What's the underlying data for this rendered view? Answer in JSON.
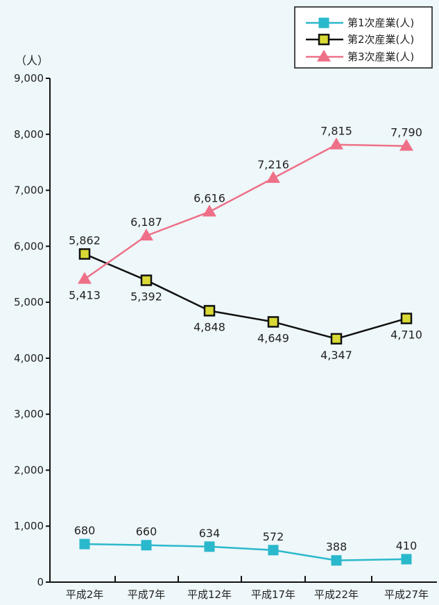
{
  "chart_data": {
    "type": "line",
    "ylabel": "（人）",
    "ylim": [
      0,
      9000
    ],
    "y_ticks": [
      0,
      1000,
      2000,
      3000,
      4000,
      5000,
      6000,
      7000,
      8000,
      9000
    ],
    "y_tick_labels": [
      "0",
      "1,000",
      "2,000",
      "3,000",
      "4,000",
      "5,000",
      "6,000",
      "7,000",
      "8,000",
      "9,000"
    ],
    "categories": [
      "平成2年",
      "平成7年",
      "平成12年",
      "平成17年",
      "平成22年",
      "平成27年"
    ],
    "legend_position": "top-right",
    "series": [
      {
        "name": "第1次産業(人)",
        "values": [
          680,
          660,
          634,
          572,
          388,
          410
        ],
        "labels": [
          "680",
          "660",
          "634",
          "572",
          "388",
          "410"
        ],
        "color": "#2ab8cc",
        "marker": "square",
        "label_position": "above"
      },
      {
        "name": "第2次産業(人)",
        "values": [
          5862,
          5392,
          4848,
          4649,
          4347,
          4710
        ],
        "labels": [
          "5,862",
          "5,392",
          "4,848",
          "4,649",
          "4,347",
          "4,710"
        ],
        "color": "#111111",
        "marker_fill": "#d9d936",
        "marker": "square-outline",
        "label_position": [
          "above",
          "below",
          "below",
          "below",
          "below",
          "below"
        ]
      },
      {
        "name": "第3次産業(人)",
        "values": [
          5413,
          6187,
          6616,
          7216,
          7815,
          7790
        ],
        "labels": [
          "5,413",
          "6,187",
          "6,616",
          "7,216",
          "7,815",
          "7,790"
        ],
        "color": "#ee7088",
        "marker": "triangle",
        "label_position": [
          "below",
          "above",
          "above",
          "above",
          "above",
          "above"
        ]
      }
    ]
  }
}
